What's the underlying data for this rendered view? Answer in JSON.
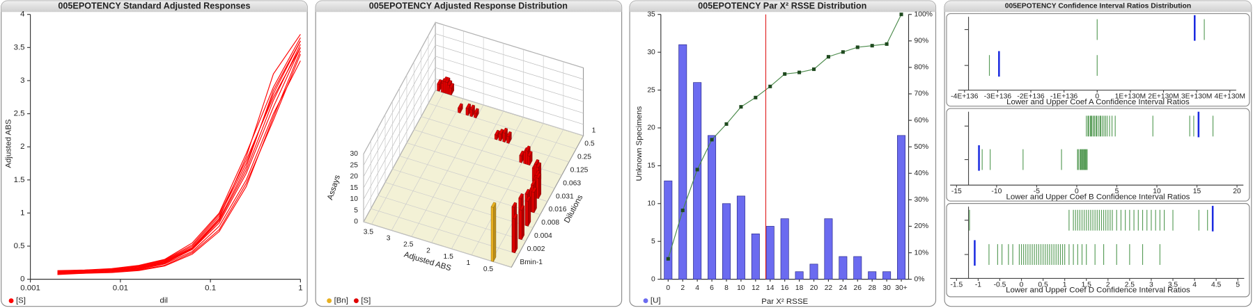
{
  "chart_data": [
    {
      "type": "line",
      "title": "005EPOTENCY Standard Adjusted Responses",
      "xlabel": "dil",
      "ylabel": "Adjusted ABS",
      "log_x": true,
      "xlim": [
        0.001,
        1
      ],
      "xticks": [
        0.001,
        0.01,
        0.1,
        1
      ],
      "ylim": [
        0,
        4
      ],
      "yticks": [
        0,
        0.5,
        1,
        1.5,
        2,
        2.5,
        3,
        3.5,
        4
      ],
      "x": [
        0.002,
        0.004,
        0.008,
        0.016,
        0.031,
        0.063,
        0.125,
        0.25,
        0.5,
        1
      ],
      "series": [
        {
          "name": "[S]",
          "color": "#ff0000",
          "values": [
            [
              0.1,
              0.11,
              0.12,
              0.16,
              0.24,
              0.45,
              0.85,
              1.6,
              2.6,
              3.5
            ],
            [
              0.12,
              0.13,
              0.15,
              0.19,
              0.28,
              0.5,
              0.95,
              1.75,
              2.8,
              3.6
            ],
            [
              0.08,
              0.09,
              0.11,
              0.14,
              0.21,
              0.4,
              0.75,
              1.45,
              2.4,
              3.4
            ],
            [
              0.11,
              0.12,
              0.14,
              0.18,
              0.27,
              0.48,
              0.92,
              1.85,
              3.1,
              3.7
            ],
            [
              0.09,
              0.1,
              0.12,
              0.15,
              0.23,
              0.42,
              0.8,
              1.5,
              2.5,
              3.3
            ],
            [
              0.13,
              0.14,
              0.16,
              0.21,
              0.3,
              0.55,
              1.0,
              1.9,
              2.9,
              3.65
            ],
            [
              0.1,
              0.1,
              0.13,
              0.17,
              0.25,
              0.46,
              0.88,
              1.65,
              2.7,
              3.55
            ],
            [
              0.07,
              0.09,
              0.1,
              0.13,
              0.2,
              0.38,
              0.72,
              1.4,
              2.45,
              3.45
            ],
            [
              0.12,
              0.12,
              0.15,
              0.2,
              0.29,
              0.52,
              0.98,
              1.8,
              2.75,
              3.5
            ],
            [
              0.1,
              0.11,
              0.13,
              0.17,
              0.26,
              0.47,
              0.9,
              1.7,
              2.85,
              3.6
            ]
          ]
        }
      ]
    },
    {
      "type": "bar3d",
      "title": "005EPOTENCY Adjusted Response Distribution",
      "xlabel": "Adjusted ABS",
      "ylabel": "Dilutions",
      "zlabel": "Assays",
      "xlim": [
        0,
        3.7
      ],
      "xticks": [
        0.5,
        1,
        1.5,
        2,
        2.5,
        3,
        3.5
      ],
      "zlim": [
        0,
        30
      ],
      "zticks": [
        0,
        5,
        10,
        15,
        20,
        25,
        30
      ],
      "categories": [
        "Bmin-1",
        "0.002",
        "0.004",
        "0.008",
        "0.016",
        "0.031",
        "0.063",
        "0.125",
        "0.25",
        "0.5",
        "1"
      ],
      "series": [
        {
          "name": "[Bn]",
          "color": "#e8b020",
          "bars": [
            [
              0,
              0.45,
              24
            ]
          ]
        },
        {
          "name": "[S]",
          "color": "#e00000",
          "bars": [
            [
              10,
              3.6,
              3
            ],
            [
              10,
              3.5,
              4
            ],
            [
              10,
              3.45,
              5
            ],
            [
              10,
              3.4,
              5
            ],
            [
              10,
              3.35,
              4
            ],
            [
              10,
              3.3,
              3
            ],
            [
              9,
              2.9,
              2
            ],
            [
              9,
              2.7,
              3
            ],
            [
              9,
              2.6,
              3
            ],
            [
              9,
              2.5,
              2
            ],
            [
              8,
              1.8,
              2
            ],
            [
              8,
              1.7,
              3
            ],
            [
              8,
              1.6,
              4
            ],
            [
              8,
              1.5,
              3
            ],
            [
              7,
              1.0,
              3
            ],
            [
              7,
              0.9,
              5
            ],
            [
              7,
              0.85,
              6
            ],
            [
              7,
              0.8,
              4
            ],
            [
              6,
              0.5,
              6
            ],
            [
              6,
              0.45,
              8
            ],
            [
              6,
              0.4,
              7
            ],
            [
              5,
              0.3,
              8
            ],
            [
              5,
              0.25,
              10
            ],
            [
              5,
              0.22,
              9
            ],
            [
              4,
              0.2,
              10
            ],
            [
              4,
              0.17,
              12
            ],
            [
              4,
              0.15,
              9
            ],
            [
              3,
              0.14,
              14
            ],
            [
              3,
              0.12,
              11
            ],
            [
              2,
              0.12,
              18
            ],
            [
              2,
              0.1,
              13
            ],
            [
              1,
              0.11,
              20
            ],
            [
              1,
              0.09,
              15
            ]
          ]
        }
      ]
    },
    {
      "type": "bar",
      "title": "005EPOTENCY Par X² RSSE Distribution",
      "xlabel": "Par X² RSSE",
      "ylabel": "Unknown Specimens",
      "categories": [
        0,
        2,
        4,
        6,
        8,
        10,
        12,
        14,
        16,
        18,
        20,
        22,
        24,
        26,
        28,
        30,
        "30+"
      ],
      "ylim": [
        0,
        35
      ],
      "yticks": [
        0,
        5,
        10,
        15,
        20,
        25,
        30,
        35
      ],
      "y2lim": [
        0,
        100
      ],
      "y2ticks": [
        {
          "value": 0,
          "label": "0%"
        },
        {
          "value": 10,
          "label": "10%"
        },
        {
          "value": 20,
          "label": "20%"
        },
        {
          "value": 30,
          "label": "30%"
        },
        {
          "value": 40,
          "label": "40%"
        },
        {
          "value": 50,
          "label": "50%"
        },
        {
          "value": 60,
          "label": "60%"
        },
        {
          "value": 70,
          "label": "70%"
        },
        {
          "value": 80,
          "label": "80%"
        },
        {
          "value": 90,
          "label": "90%"
        },
        {
          "value": 100,
          "label": "100%"
        }
      ],
      "reference_line": 13.4,
      "reference_color": "#e02020",
      "series": [
        {
          "name": "[U]",
          "color": "#6b6bf0",
          "values": [
            13,
            31,
            26,
            19,
            10,
            11,
            6,
            7,
            8,
            1,
            2,
            8,
            3,
            3,
            1,
            1,
            19
          ]
        },
        {
          "color": "#4a8a4a",
          "axis": "y2",
          "values": [
            7.7,
            26,
            41.4,
            52.7,
            58.6,
            65.1,
            68.6,
            72.8,
            77.5,
            78.1,
            79.3,
            84,
            85.8,
            87.6,
            88.2,
            88.8,
            100
          ]
        }
      ]
    },
    {
      "type": "strip",
      "title": "005EPOTENCY Confidence Interval Ratios Distribution",
      "color": "#1e7a1e",
      "highlight_color": "#1a2ae0",
      "plots": [
        {
          "xlabel": "Lower and Upper Coef A Confidence Interval Ratios",
          "xlim": [
            -4e+136,
            4e+136
          ],
          "xticks": [
            {
              "value": -4e+136,
              "label": "-4E+136"
            },
            {
              "value": -3e+136,
              "label": "-3E+136"
            },
            {
              "value": -2e+136,
              "label": "-2E+136"
            },
            {
              "value": -1e+136,
              "label": "-1E+136"
            },
            0,
            {
              "value": 1e+136,
              "label": "1E+130M"
            },
            {
              "value": 2e+136,
              "label": "2E+130M"
            },
            {
              "value": 3e+136,
              "label": "3E+130M"
            },
            {
              "value": 4e+136,
              "label": "4E+130M"
            }
          ],
          "rows": [
            {
              "values": [
                0,
                3.23e+136
              ],
              "highlight": 2.94e+136
            },
            {
              "values": [
                -3.25e+136,
                0
              ],
              "highlight": -2.96e+136
            }
          ]
        },
        {
          "xlabel": "Lower and Upper Coef B Confidence Interval Ratios",
          "xlim": [
            -15,
            20
          ],
          "xticks": [
            -15,
            -10,
            -5,
            0,
            5,
            10,
            15,
            20
          ],
          "rows": [
            {
              "values": [
                1.2,
                1.4,
                1.5,
                1.7,
                1.8,
                1.9,
                2.1,
                2.2,
                2.4,
                2.5,
                2.7,
                2.9,
                3.0,
                3.2,
                3.4,
                3.6,
                3.8,
                4.1,
                4.4,
                4.8,
                9.5,
                14.1,
                14.6,
                17.0
              ],
              "highlight": 15.2
            },
            {
              "values": [
                -11.8,
                -10.8,
                -6.7,
                -1.9,
                0.1,
                0.2,
                0.4,
                0.5,
                0.6,
                0.7,
                0.8,
                0.9,
                1.0,
                1.1,
                1.2,
                1.3
              ],
              "highlight": -12.2
            }
          ]
        },
        {
          "xlabel": "Lower and Upper Coef D Confidence Interval Ratios",
          "xlim": [
            -1.5,
            5
          ],
          "xticks": [
            -1.5,
            -1,
            -0.5,
            0,
            0.5,
            1,
            1.5,
            2,
            2.5,
            3,
            3.5,
            4,
            4.5,
            5
          ],
          "rows": [
            {
              "values": [
                -1.2,
                1.1,
                1.2,
                1.25,
                1.3,
                1.35,
                1.4,
                1.45,
                1.5,
                1.55,
                1.6,
                1.65,
                1.7,
                1.75,
                1.8,
                1.85,
                1.9,
                1.95,
                2.0,
                2.05,
                2.1,
                2.2,
                2.3,
                2.4,
                2.5,
                2.6,
                2.7,
                2.8,
                2.9,
                3.0,
                3.1,
                3.2,
                3.3,
                3.5,
                4.1,
                4.3
              ],
              "highlight": 4.42
            },
            {
              "values": [
                -0.75,
                -0.55,
                -0.45,
                -0.3,
                -0.2,
                -0.05,
                0.0,
                0.05,
                0.1,
                0.15,
                0.2,
                0.25,
                0.3,
                0.35,
                0.4,
                0.45,
                0.5,
                0.55,
                0.6,
                0.65,
                0.7,
                0.75,
                0.8,
                0.85,
                0.9,
                0.95,
                1.0,
                1.1,
                1.2,
                1.3,
                1.4,
                1.5,
                1.7,
                1.9,
                2.2,
                2.5,
                2.8,
                3.2
              ],
              "highlight": -1.08
            }
          ]
        }
      ]
    }
  ]
}
